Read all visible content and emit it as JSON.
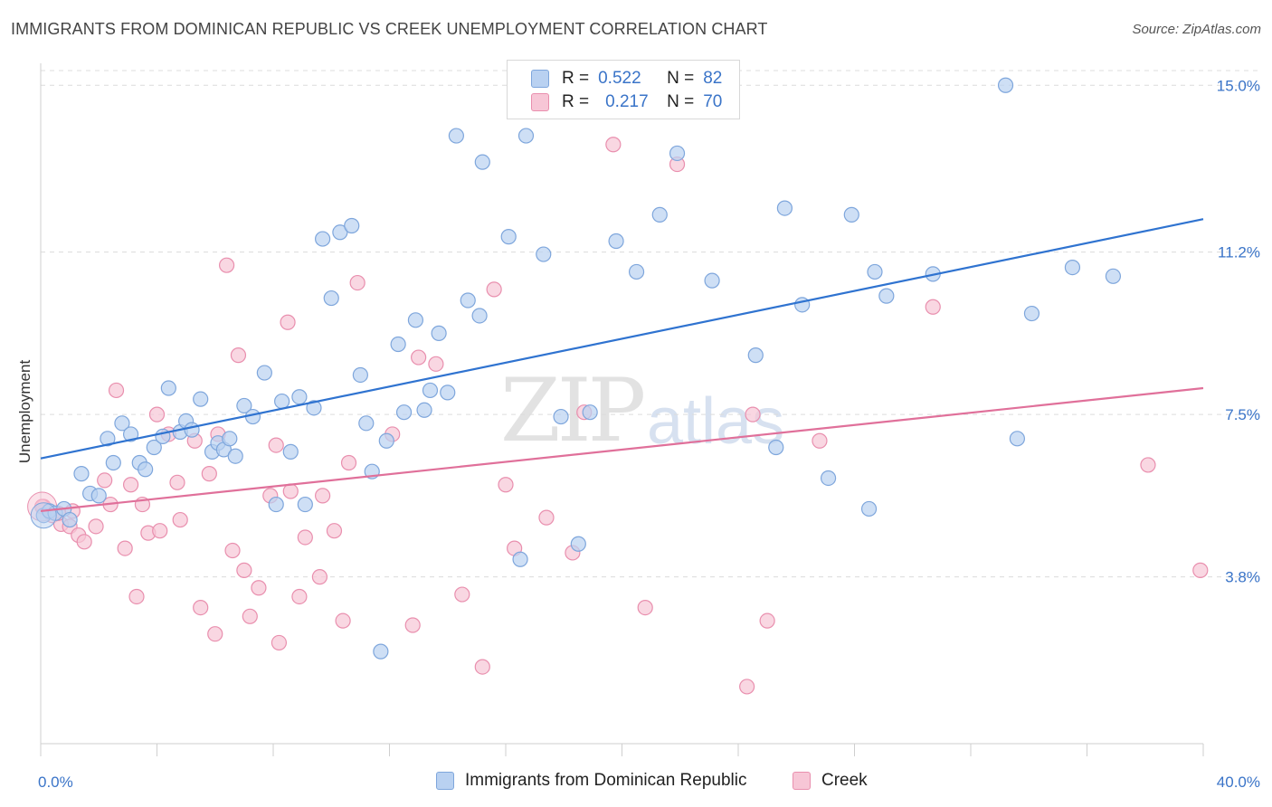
{
  "header": {
    "title": "IMMIGRANTS FROM DOMINICAN REPUBLIC VS CREEK UNEMPLOYMENT CORRELATION CHART",
    "source": "Source: ZipAtlas.com"
  },
  "legend_top": {
    "rows": [
      {
        "r_label": "R =",
        "r_value": "0.522",
        "n_label": "N =",
        "n_value": "82"
      },
      {
        "r_label": "R =",
        "r_value": "0.217",
        "n_label": "N =",
        "n_value": "70"
      }
    ]
  },
  "legend_bottom": {
    "series1": "Immigrants from Dominican Republic",
    "series2": "Creek"
  },
  "watermark": {
    "part1": "ZIP",
    "part2": "atlas"
  },
  "colors": {
    "blue_fill": "#b9d1f1",
    "blue_stroke": "#7ea6dc",
    "blue_line": "#2f73d0",
    "pink_fill": "#f7c6d6",
    "pink_stroke": "#e98fae",
    "pink_line": "#e0709a",
    "axis_label": "#3a74c8",
    "grid": "#dcdcdc"
  },
  "chart_data": {
    "type": "scatter",
    "title": "IMMIGRANTS FROM DOMINICAN REPUBLIC VS CREEK UNEMPLOYMENT CORRELATION CHART",
    "xlabel": "",
    "ylabel": "Unemployment",
    "xlim": [
      0,
      40
    ],
    "ylim": [
      0,
      15.5
    ],
    "x_tick_labels": [
      "0.0%",
      "40.0%"
    ],
    "y_ticks": [
      3.8,
      7.5,
      11.2,
      15.0
    ],
    "y_tick_labels": [
      "3.8%",
      "7.5%",
      "11.2%",
      "15.0%"
    ],
    "grid": "horizontal dashed",
    "legend_position": "top-center",
    "series": [
      {
        "name": "Immigrants from Dominican Republic",
        "color": "#b9d1f1",
        "trend": {
          "x": [
            0,
            40
          ],
          "y": [
            6.5,
            11.95
          ]
        },
        "points": [
          [
            0.1,
            5.2
          ],
          [
            0.3,
            5.3
          ],
          [
            0.5,
            5.25
          ],
          [
            0.8,
            5.35
          ],
          [
            1.0,
            5.1
          ],
          [
            1.4,
            6.15
          ],
          [
            1.7,
            5.7
          ],
          [
            2.0,
            5.65
          ],
          [
            2.3,
            6.95
          ],
          [
            2.5,
            6.4
          ],
          [
            2.8,
            7.3
          ],
          [
            3.1,
            7.05
          ],
          [
            3.4,
            6.4
          ],
          [
            3.6,
            6.25
          ],
          [
            3.9,
            6.75
          ],
          [
            4.2,
            7.0
          ],
          [
            4.4,
            8.1
          ],
          [
            4.8,
            7.1
          ],
          [
            5.0,
            7.35
          ],
          [
            5.2,
            7.15
          ],
          [
            5.5,
            7.85
          ],
          [
            5.9,
            6.65
          ],
          [
            6.1,
            6.85
          ],
          [
            6.3,
            6.7
          ],
          [
            6.5,
            6.95
          ],
          [
            6.7,
            6.55
          ],
          [
            7.0,
            7.7
          ],
          [
            7.3,
            7.45
          ],
          [
            7.7,
            8.45
          ],
          [
            8.1,
            5.45
          ],
          [
            8.3,
            7.8
          ],
          [
            8.6,
            6.65
          ],
          [
            8.9,
            7.9
          ],
          [
            9.1,
            5.45
          ],
          [
            9.4,
            7.65
          ],
          [
            9.7,
            11.5
          ],
          [
            10.0,
            10.15
          ],
          [
            10.3,
            11.65
          ],
          [
            10.7,
            11.8
          ],
          [
            11.0,
            8.4
          ],
          [
            11.2,
            7.3
          ],
          [
            11.4,
            6.2
          ],
          [
            11.7,
            2.1
          ],
          [
            11.9,
            6.9
          ],
          [
            12.3,
            9.1
          ],
          [
            12.5,
            7.55
          ],
          [
            12.9,
            9.65
          ],
          [
            13.2,
            7.6
          ],
          [
            13.4,
            8.05
          ],
          [
            13.7,
            9.35
          ],
          [
            14.0,
            8.0
          ],
          [
            14.3,
            13.85
          ],
          [
            14.7,
            10.1
          ],
          [
            15.1,
            9.75
          ],
          [
            15.2,
            13.25
          ],
          [
            16.1,
            11.55
          ],
          [
            16.5,
            4.2
          ],
          [
            16.7,
            13.85
          ],
          [
            17.3,
            11.15
          ],
          [
            17.9,
            7.45
          ],
          [
            18.5,
            4.55
          ],
          [
            18.9,
            7.55
          ],
          [
            19.8,
            11.45
          ],
          [
            20.5,
            10.75
          ],
          [
            21.3,
            12.05
          ],
          [
            21.9,
            13.45
          ],
          [
            23.1,
            10.55
          ],
          [
            24.6,
            8.85
          ],
          [
            25.3,
            6.75
          ],
          [
            25.6,
            12.2
          ],
          [
            26.2,
            10.0
          ],
          [
            27.1,
            6.05
          ],
          [
            27.9,
            12.05
          ],
          [
            28.5,
            5.35
          ],
          [
            28.7,
            10.75
          ],
          [
            29.1,
            10.2
          ],
          [
            30.7,
            10.7
          ],
          [
            33.2,
            15.0
          ],
          [
            33.6,
            6.95
          ],
          [
            34.1,
            9.8
          ],
          [
            35.5,
            10.85
          ],
          [
            36.9,
            10.65
          ]
        ]
      },
      {
        "name": "Creek",
        "color": "#f7c6d6",
        "trend": {
          "x": [
            0,
            40
          ],
          "y": [
            5.3,
            8.1
          ]
        },
        "points": [
          [
            0.1,
            5.4
          ],
          [
            0.4,
            5.2
          ],
          [
            0.7,
            5.0
          ],
          [
            1.0,
            4.95
          ],
          [
            1.3,
            4.75
          ],
          [
            1.5,
            4.6
          ],
          [
            1.9,
            4.95
          ],
          [
            2.2,
            6.0
          ],
          [
            2.4,
            5.45
          ],
          [
            2.6,
            8.05
          ],
          [
            2.9,
            4.45
          ],
          [
            3.1,
            5.9
          ],
          [
            3.3,
            3.35
          ],
          [
            3.5,
            5.45
          ],
          [
            3.7,
            4.8
          ],
          [
            4.0,
            7.5
          ],
          [
            4.1,
            4.85
          ],
          [
            4.4,
            7.05
          ],
          [
            4.7,
            5.95
          ],
          [
            4.8,
            5.1
          ],
          [
            5.3,
            6.9
          ],
          [
            5.5,
            3.1
          ],
          [
            5.8,
            6.15
          ],
          [
            6.0,
            2.5
          ],
          [
            6.1,
            7.05
          ],
          [
            6.4,
            10.9
          ],
          [
            6.6,
            4.4
          ],
          [
            6.8,
            8.85
          ],
          [
            7.0,
            3.95
          ],
          [
            7.2,
            2.9
          ],
          [
            7.5,
            3.55
          ],
          [
            7.9,
            5.65
          ],
          [
            8.1,
            6.8
          ],
          [
            8.2,
            2.3
          ],
          [
            8.5,
            9.6
          ],
          [
            8.6,
            5.75
          ],
          [
            8.9,
            3.35
          ],
          [
            9.1,
            4.7
          ],
          [
            9.6,
            3.8
          ],
          [
            9.7,
            5.65
          ],
          [
            10.1,
            4.85
          ],
          [
            10.4,
            2.8
          ],
          [
            10.6,
            6.4
          ],
          [
            10.9,
            10.5
          ],
          [
            12.1,
            7.05
          ],
          [
            12.8,
            2.7
          ],
          [
            13.0,
            8.8
          ],
          [
            13.6,
            8.65
          ],
          [
            14.5,
            3.4
          ],
          [
            15.2,
            1.75
          ],
          [
            15.6,
            10.35
          ],
          [
            16.0,
            5.9
          ],
          [
            16.3,
            4.45
          ],
          [
            17.4,
            5.15
          ],
          [
            18.3,
            4.35
          ],
          [
            18.7,
            7.55
          ],
          [
            19.7,
            13.65
          ],
          [
            20.8,
            3.1
          ],
          [
            21.9,
            13.2
          ],
          [
            22.3,
            15.0
          ],
          [
            24.3,
            1.3
          ],
          [
            24.5,
            7.5
          ],
          [
            25.0,
            2.8
          ],
          [
            26.8,
            6.9
          ],
          [
            30.7,
            9.95
          ],
          [
            38.1,
            6.35
          ],
          [
            39.9,
            3.95
          ],
          [
            0.05,
            5.4
          ],
          [
            0.6,
            5.25
          ],
          [
            1.1,
            5.3
          ]
        ]
      }
    ]
  }
}
